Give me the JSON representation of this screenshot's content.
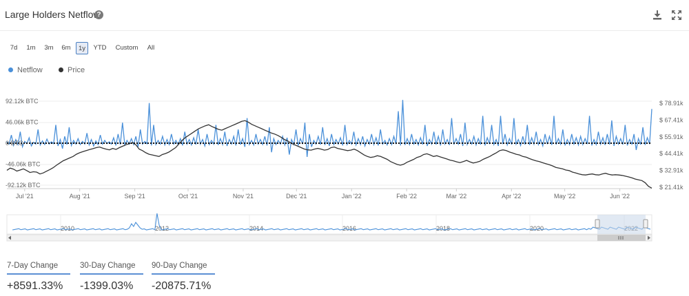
{
  "header": {
    "title": "Large Holders Netflow",
    "help_icon": "question-circle-icon",
    "download_icon": "download-icon",
    "expand_icon": "expand-icon"
  },
  "ranges": [
    {
      "label": "7d",
      "active": false
    },
    {
      "label": "1m",
      "active": false
    },
    {
      "label": "3m",
      "active": false
    },
    {
      "label": "6m",
      "active": false
    },
    {
      "label": "1y",
      "active": true
    },
    {
      "label": "YTD",
      "active": false
    },
    {
      "label": "Custom",
      "active": false
    },
    {
      "label": "All",
      "active": false
    }
  ],
  "legend": [
    {
      "name": "Netflow",
      "color": "#4a90d9"
    },
    {
      "name": "Price",
      "color": "#333333"
    }
  ],
  "chart_data": {
    "type": "line",
    "x_labels": [
      "Jul '21",
      "Aug '21",
      "Sep '21",
      "Oct '21",
      "Nov '21",
      "Dec '21",
      "Jan '22",
      "Feb '22",
      "Mar '22",
      "Apr '22",
      "May '22",
      "Jun '22"
    ],
    "y_left_ticks": [
      "92.12k BTC",
      "46.06k BTC",
      "0 BTC",
      "-46.06k BTC",
      "-92.12k BTC"
    ],
    "y_left_values": [
      92120,
      46060,
      0,
      -46060,
      -92120
    ],
    "y_right_ticks": [
      "$ 78.91k",
      "$ 67.41k",
      "$ 55.91k",
      "$ 44.41k",
      "$ 32.91k",
      "$ 21.41k"
    ],
    "y_right_values": [
      78910,
      67410,
      55910,
      44410,
      32910,
      21410
    ],
    "x_range": [
      "2021-06-21",
      "2022-06-19"
    ],
    "series": [
      {
        "name": "Netflow",
        "color": "#4a90d9",
        "axis": "left",
        "values": [
          3000,
          -2000,
          18000,
          -5000,
          8000,
          -3000,
          25000,
          -8000,
          4000,
          -1000,
          12000,
          -6000,
          2000,
          -2000,
          30000,
          -4000,
          5000,
          -3000,
          9000,
          -2000,
          3000,
          -1000,
          40000,
          -6000,
          8000,
          -12000,
          15000,
          -3000,
          35000,
          -5000,
          6000,
          -2000,
          10000,
          -3000,
          4000,
          -2000,
          22000,
          -4000,
          8000,
          -6000,
          5000,
          -3000,
          18000,
          -2000,
          6000,
          -1000,
          3000,
          -2000,
          12000,
          -5000,
          20000,
          -3000,
          45000,
          -4000,
          6000,
          -2000,
          10000,
          -3000,
          15000,
          -8000,
          30000,
          -2000,
          4000,
          -1000,
          88000,
          -5000,
          40000,
          -3000,
          6000,
          -2000,
          15000,
          -4000,
          8000,
          -3000,
          20000,
          -2000,
          6000,
          -3000,
          10000,
          -5000,
          25000,
          -2000,
          8000,
          -4000,
          12000,
          -3000,
          30000,
          -2000,
          8000,
          -6000,
          20000,
          -3000,
          6000,
          -2000,
          40000,
          -4000,
          10000,
          -3000,
          25000,
          -6000,
          8000,
          -2000,
          15000,
          -5000,
          30000,
          -3000,
          10000,
          -8000,
          55000,
          -3000,
          6000,
          -4000,
          20000,
          -2000,
          8000,
          -3000,
          15000,
          -5000,
          35000,
          -20000,
          10000,
          -3000,
          6000,
          -2000,
          15000,
          -4000,
          12000,
          -25000,
          8000,
          -3000,
          30000,
          -5000,
          10000,
          -2000,
          45000,
          -30000,
          20000,
          -8000,
          6000,
          -2000,
          15000,
          -3000,
          35000,
          -4000,
          10000,
          -6000,
          20000,
          -3000,
          8000,
          -2000,
          12000,
          -5000,
          40000,
          -3000,
          6000,
          -2000,
          25000,
          -4000,
          10000,
          -3000,
          15000,
          -6000,
          8000,
          -2000,
          20000,
          -3000,
          12000,
          -5000,
          30000,
          -2000,
          6000,
          -4000,
          10000,
          -3000,
          15000,
          -2000,
          70000,
          -5000,
          95000,
          -4000,
          10000,
          -3000,
          20000,
          -2000,
          8000,
          -4000,
          12000,
          -3000,
          40000,
          -6000,
          8000,
          -2000,
          25000,
          -3000,
          15000,
          -5000,
          30000,
          -2000,
          8000,
          -4000,
          55000,
          -3000,
          10000,
          -2000,
          20000,
          -6000,
          45000,
          -3000,
          8000,
          -2000,
          15000,
          -4000,
          10000,
          -3000,
          60000,
          -5000,
          12000,
          -2000,
          40000,
          -3000,
          8000,
          -6000,
          60000,
          -2000,
          20000,
          -4000,
          10000,
          -3000,
          55000,
          -2000,
          8000,
          -5000,
          15000,
          -3000,
          40000,
          -4000,
          12000,
          -2000,
          25000,
          -3000,
          8000,
          -6000,
          20000,
          -2000,
          15000,
          -4000,
          60000,
          -3000,
          10000,
          -2000,
          30000,
          -5000,
          8000,
          -3000,
          20000,
          -2000,
          12000,
          -4000,
          15000,
          -3000,
          10000,
          -2000,
          60000,
          -5000,
          8000,
          -3000,
          25000,
          -2000,
          12000,
          -4000,
          20000,
          -3000,
          50000,
          -6000,
          15000,
          -2000,
          10000,
          -3000,
          40000,
          -5000,
          8000,
          -2000,
          20000,
          -15000,
          10000,
          -3000,
          35000,
          -4000,
          12000,
          -2000,
          75000
        ]
      },
      {
        "name": "Price",
        "color": "#333333",
        "axis": "right",
        "values": [
          33000,
          34500,
          33800,
          32500,
          33200,
          34000,
          32800,
          31500,
          32000,
          31800,
          30500,
          31200,
          32400,
          33500,
          34800,
          36500,
          38000,
          39500,
          40500,
          41500,
          42500,
          44000,
          45000,
          45800,
          46500,
          47200,
          47800,
          48500,
          49000,
          48200,
          47500,
          47000,
          48000,
          47300,
          48500,
          49500,
          50500,
          51200,
          52000,
          50500,
          47500,
          46500,
          45000,
          44000,
          43500,
          43000,
          42500,
          43800,
          44500,
          45500,
          47000,
          48500,
          51000,
          53500,
          55500,
          57000,
          58500,
          60000,
          61500,
          62500,
          63500,
          64200,
          63000,
          62000,
          61000,
          60500,
          61500,
          62500,
          63500,
          64500,
          65500,
          66500,
          67000,
          66000,
          64500,
          63500,
          62500,
          61500,
          60500,
          59500,
          58500,
          57800,
          56800,
          55500,
          54000,
          53000,
          51500,
          50500,
          49500,
          48500,
          47500,
          47000,
          46800,
          47500,
          48000,
          47500,
          46800,
          47200,
          48500,
          49000,
          48000,
          47500,
          47000,
          46500,
          46800,
          47500,
          46500,
          45000,
          43500,
          42500,
          41800,
          42200,
          43000,
          42500,
          41500,
          40500,
          39000,
          38000,
          37000,
          36500,
          37200,
          38500,
          39500,
          40500,
          41800,
          42500,
          43800,
          44300,
          43500,
          42500,
          43000,
          42200,
          41500,
          40800,
          40000,
          39500,
          38800,
          38300,
          39000,
          39800,
          38800,
          38000,
          38500,
          39200,
          40500,
          41500,
          42500,
          43800,
          45000,
          46500,
          47000,
          46500,
          45500,
          44800,
          44000,
          43500,
          42500,
          42000,
          41000,
          40200,
          39500,
          39000,
          38200,
          37500,
          36800,
          36000,
          35000,
          34500,
          34000,
          33200,
          32800,
          31800,
          31200,
          30500,
          30000,
          29800,
          30200,
          30500,
          30000,
          29800,
          30500,
          31000,
          30200,
          29800,
          30000,
          29800,
          29500,
          29000,
          28500,
          27800,
          27000,
          26500,
          26000,
          24500,
          22000,
          20800
        ]
      }
    ]
  },
  "navigator": {
    "labels": [
      "2010",
      "2012",
      "2014",
      "2016",
      "2018",
      "2020",
      "2022"
    ],
    "scroll_grip": "grip-icon"
  },
  "stats": [
    {
      "label": "7-Day Change",
      "value": "+8591.33%"
    },
    {
      "label": "30-Day Change",
      "value": "-1399.03%"
    },
    {
      "label": "90-Day Change",
      "value": "-20875.71%"
    }
  ]
}
